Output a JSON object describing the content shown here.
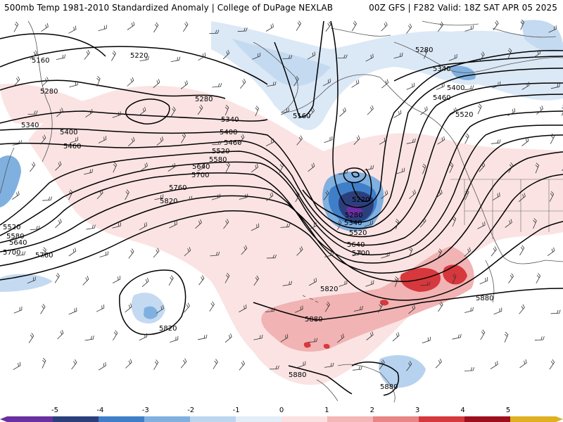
{
  "header": {
    "title": "500mb Temp 1981-2010 Standardized Anomaly | College of DuPage NEXLAB",
    "run_info": "00Z GFS | F282 Valid: 18Z SAT APR 05 2025"
  },
  "contour_labels": [
    "5160",
    "5220",
    "5280",
    "5340",
    "5400",
    "5460",
    "5520",
    "5580",
    "5640",
    "5700",
    "5760",
    "5820",
    "5880"
  ],
  "colorbar": {
    "ticks": [
      "-5",
      "-4",
      "-3",
      "-2",
      "-1",
      "0",
      "1",
      "2",
      "3",
      "4",
      "5"
    ],
    "colors": [
      "#6a2fa0",
      "#2b3f7d",
      "#3f7fc9",
      "#7fb0e0",
      "#bcd6ef",
      "#e3edf8",
      "#fbe1e1",
      "#f4b6b6",
      "#e98585",
      "#d6383d",
      "#9e0f1c",
      "#e0b020"
    ]
  },
  "colors": {
    "cold_strong": "#2b3f7d",
    "cold_mid": "#4f8fd8",
    "cold_light": "#b7d2ee",
    "warm_light": "#f6d0d0",
    "warm_mid": "#ec9c9c",
    "warm_strong": "#d6383d",
    "map_lines": "#444444"
  },
  "icons": [
    "colorbar-left-arrow-icon",
    "colorbar-right-arrow-icon"
  ]
}
